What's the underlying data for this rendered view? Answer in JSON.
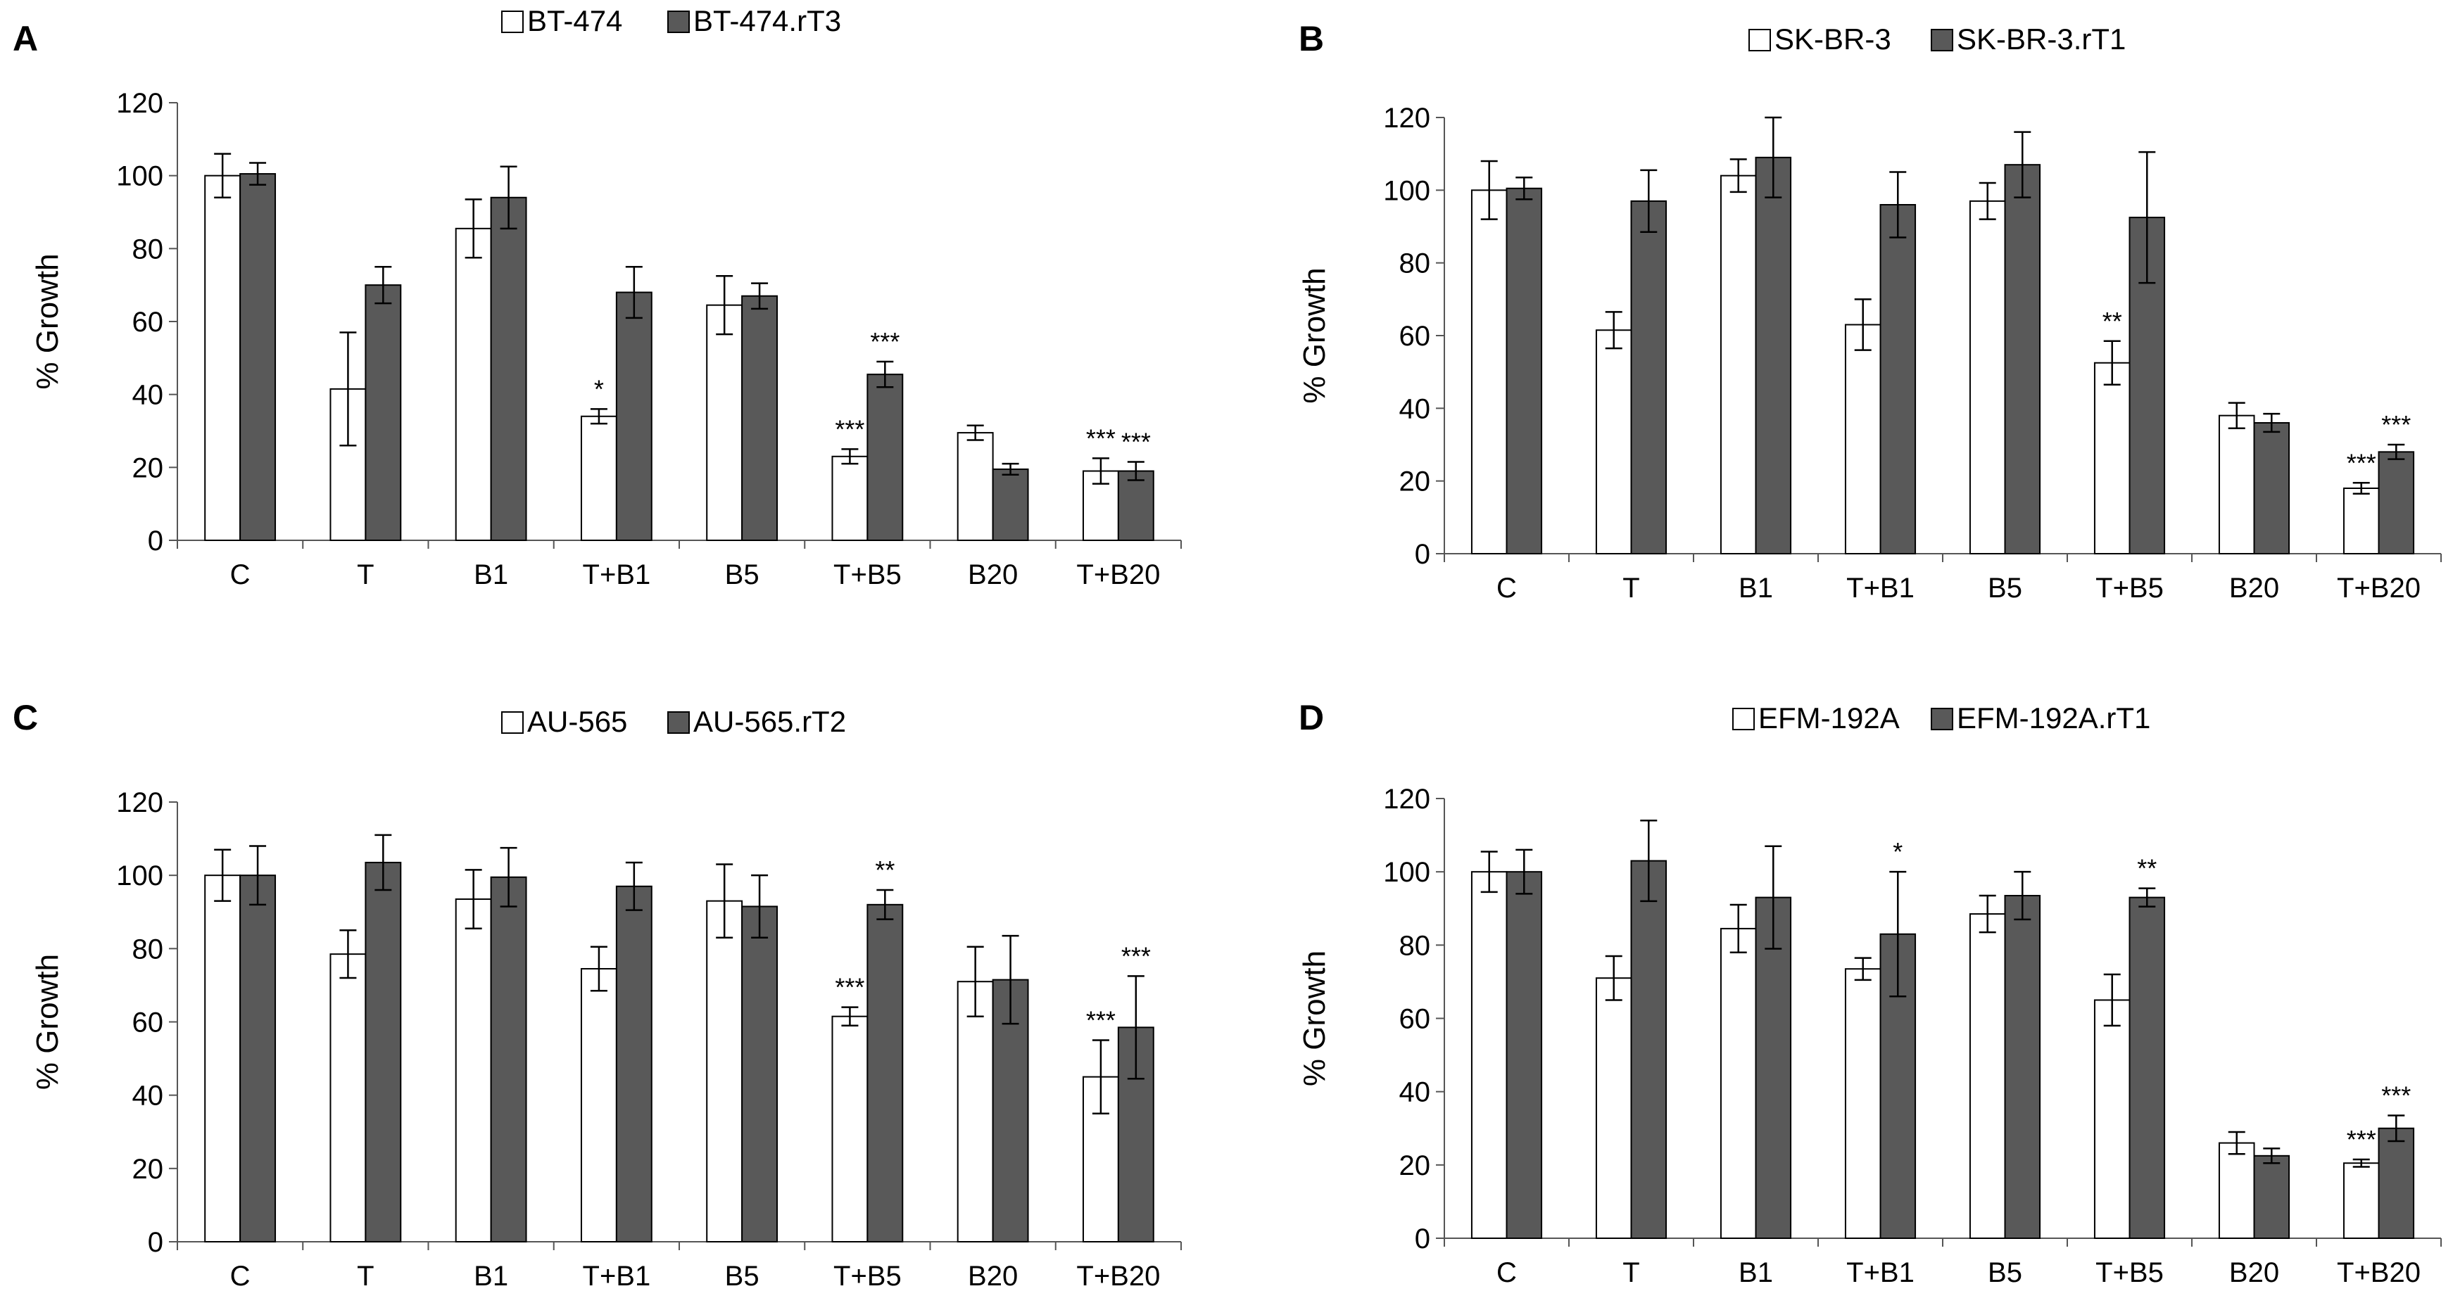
{
  "chart_data": [
    {
      "type": "bar",
      "panel": "A",
      "legend": [
        "BT-474",
        "BT-474.rT3"
      ],
      "categories": [
        "C",
        "T",
        "B1",
        "T+B1",
        "B5",
        "T+B5",
        "B20",
        "T+B20"
      ],
      "ylabel": "% Growth",
      "ylim": [
        0,
        120
      ],
      "yticks": [
        0,
        20,
        40,
        60,
        80,
        100,
        120
      ],
      "series": [
        {
          "name": "BT-474",
          "color": "#ffffff",
          "values": [
            100,
            41.5,
            85.5,
            34,
            64.5,
            23,
            29.5,
            19
          ],
          "errors": [
            6,
            15.5,
            8,
            2,
            8,
            2,
            2,
            3.5
          ]
        },
        {
          "name": "BT-474.rT3",
          "color": "#595959",
          "values": [
            100.5,
            70,
            94,
            68,
            67,
            45.5,
            19.5,
            19
          ],
          "errors": [
            3,
            5,
            8.5,
            7,
            3.5,
            3.5,
            1.5,
            2.5
          ]
        }
      ],
      "annotations": [
        {
          "category": "T+B1",
          "series": 0,
          "text": "*"
        },
        {
          "category": "T+B5",
          "series": 0,
          "text": "***"
        },
        {
          "category": "T+B5",
          "series": 1,
          "text": "***"
        },
        {
          "category": "T+B20",
          "series": 0,
          "text": "***"
        },
        {
          "category": "T+B20",
          "series": 1,
          "text": "***"
        }
      ]
    },
    {
      "type": "bar",
      "panel": "B",
      "legend": [
        "SK-BR-3",
        "SK-BR-3.rT1"
      ],
      "categories": [
        "C",
        "T",
        "B1",
        "T+B1",
        "B5",
        "T+B5",
        "B20",
        "T+B20"
      ],
      "ylabel": "% Growth",
      "ylim": [
        0,
        120
      ],
      "yticks": [
        0,
        20,
        40,
        60,
        80,
        100,
        120
      ],
      "series": [
        {
          "name": "SK-BR-3",
          "color": "#ffffff",
          "values": [
            100,
            61.5,
            104,
            63,
            97,
            52.5,
            38,
            18
          ],
          "errors": [
            8,
            5,
            4.5,
            7,
            5,
            6,
            3.5,
            1.5
          ]
        },
        {
          "name": "SK-BR-3.rT1",
          "color": "#595959",
          "values": [
            100.5,
            97,
            109,
            96,
            107,
            92.5,
            36,
            28
          ],
          "errors": [
            3,
            8.5,
            11,
            9,
            9,
            18,
            2.5,
            2
          ]
        }
      ],
      "annotations": [
        {
          "category": "T+B5",
          "series": 0,
          "text": "**"
        },
        {
          "category": "T+B20",
          "series": 0,
          "text": "***"
        },
        {
          "category": "T+B20",
          "series": 1,
          "text": "***"
        }
      ]
    },
    {
      "type": "bar",
      "panel": "C",
      "legend": [
        "AU-565",
        "AU-565.rT2"
      ],
      "categories": [
        "C",
        "T",
        "B1",
        "T+B1",
        "B5",
        "T+B5",
        "B20",
        "T+B20"
      ],
      "ylabel": "% Growth",
      "ylim": [
        0,
        120
      ],
      "yticks": [
        0,
        20,
        40,
        60,
        80,
        100,
        120
      ],
      "series": [
        {
          "name": "AU-565",
          "color": "#ffffff",
          "values": [
            100,
            78.5,
            93.5,
            74.5,
            93,
            61.5,
            71,
            45
          ],
          "errors": [
            7,
            6.5,
            8,
            6,
            10,
            2.5,
            9.5,
            10
          ]
        },
        {
          "name": "AU-565.rT2",
          "color": "#595959",
          "values": [
            100,
            103.5,
            99.5,
            97,
            91.5,
            92,
            71.5,
            58.5
          ],
          "errors": [
            8,
            7.5,
            8,
            6.5,
            8.5,
            4,
            12,
            14
          ]
        }
      ],
      "annotations": [
        {
          "category": "T+B5",
          "series": 0,
          "text": "***"
        },
        {
          "category": "T+B5",
          "series": 1,
          "text": "**"
        },
        {
          "category": "T+B20",
          "series": 0,
          "text": "***"
        },
        {
          "category": "T+B20",
          "series": 1,
          "text": "***"
        }
      ]
    },
    {
      "type": "bar",
      "panel": "D",
      "legend": [
        "EFM-192A",
        "EFM-192A.rT1"
      ],
      "categories": [
        "C",
        "T",
        "B1",
        "T+B1",
        "B5",
        "T+B5",
        "B20",
        "T+B20"
      ],
      "ylabel": "% Growth",
      "ylim": [
        0,
        120
      ],
      "yticks": [
        0,
        20,
        40,
        60,
        80,
        100,
        120
      ],
      "series": [
        {
          "name": "EFM-192A",
          "color": "#ffffff",
          "values": [
            100,
            71,
            84.5,
            73.5,
            88.5,
            65,
            26,
            20.5
          ],
          "errors": [
            5.5,
            6,
            6.5,
            3,
            5,
            7,
            3,
            1
          ]
        },
        {
          "name": "EFM-192A.rT1",
          "color": "#595959",
          "values": [
            100,
            103,
            93,
            83,
            93.5,
            93,
            22.5,
            30
          ],
          "errors": [
            6,
            11,
            14,
            17,
            6.5,
            2.5,
            2,
            3.5
          ]
        }
      ],
      "annotations": [
        {
          "category": "T+B1",
          "series": 1,
          "text": "*"
        },
        {
          "category": "T+B5",
          "series": 1,
          "text": "**"
        },
        {
          "category": "T+B20",
          "series": 0,
          "text": "***"
        },
        {
          "category": "T+B20",
          "series": 1,
          "text": "***"
        }
      ]
    }
  ]
}
